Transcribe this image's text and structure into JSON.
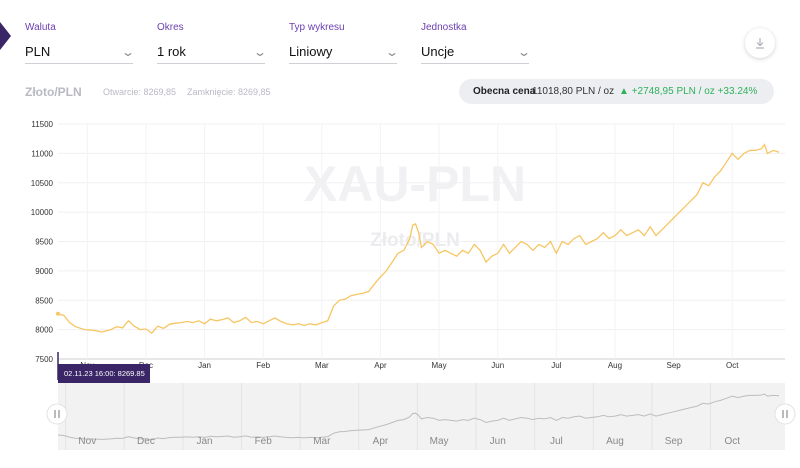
{
  "filters": [
    {
      "label": "Waluta",
      "value": "PLN"
    },
    {
      "label": "Okres",
      "value": "1 rok"
    },
    {
      "label": "Typ wykresu",
      "value": "Liniowy"
    },
    {
      "label": "Jednostka",
      "value": "Uncje"
    }
  ],
  "header": {
    "pair": "Złoto/PLN",
    "open": "Otwarcie: 8269,85",
    "close": "Zamknięcie: 8269,85"
  },
  "current_price": {
    "label": "Obecna cena",
    "value": "11018,80 PLN / oz",
    "change": "+2748,95 PLN / oz +33.24%"
  },
  "watermark": {
    "big": "XAU-PLN",
    "small": "Złoto/PLN"
  },
  "tooltip": "02.11.23 16:00: 8269.85",
  "colors": {
    "line": "#f7c663",
    "accent": "#6b3fb0",
    "tooltip_bg": "#3a2566",
    "up": "#2fb15a"
  },
  "icons": {
    "download": "download-icon",
    "handle": "grip-handle-icon",
    "expand": "chevron-down-icon"
  },
  "chart_data": {
    "type": "line",
    "x_ticks": [
      "Nov",
      "Dec",
      "Jan",
      "Feb",
      "Mar",
      "Apr",
      "May",
      "Jun",
      "Jul",
      "Aug",
      "Sep",
      "Oct"
    ],
    "y_ticks": [
      "7500",
      "8000",
      "8500",
      "9000",
      "9500",
      "10000",
      "10500",
      "11000",
      "11500"
    ],
    "ylim": [
      7500,
      11500
    ],
    "x_domain": [
      0,
      12.4
    ],
    "grid": true,
    "series": [
      {
        "values": [
          [
            0.0,
            8270
          ],
          [
            0.1,
            8240
          ],
          [
            0.2,
            8120
          ],
          [
            0.3,
            8050
          ],
          [
            0.45,
            8000
          ],
          [
            0.6,
            7990
          ],
          [
            0.75,
            7960
          ],
          [
            0.9,
            8000
          ],
          [
            1.0,
            8050
          ],
          [
            1.1,
            8030
          ],
          [
            1.2,
            8150
          ],
          [
            1.3,
            8060
          ],
          [
            1.4,
            8000
          ],
          [
            1.5,
            8010
          ],
          [
            1.6,
            7940
          ],
          [
            1.7,
            8060
          ],
          [
            1.8,
            8020
          ],
          [
            1.9,
            8090
          ],
          [
            2.0,
            8110
          ],
          [
            2.1,
            8120
          ],
          [
            2.2,
            8140
          ],
          [
            2.3,
            8120
          ],
          [
            2.4,
            8150
          ],
          [
            2.5,
            8100
          ],
          [
            2.6,
            8180
          ],
          [
            2.7,
            8150
          ],
          [
            2.8,
            8170
          ],
          [
            2.9,
            8200
          ],
          [
            3.0,
            8120
          ],
          [
            3.1,
            8150
          ],
          [
            3.2,
            8210
          ],
          [
            3.3,
            8120
          ],
          [
            3.4,
            8140
          ],
          [
            3.5,
            8100
          ],
          [
            3.6,
            8150
          ],
          [
            3.7,
            8200
          ],
          [
            3.8,
            8140
          ],
          [
            3.9,
            8100
          ],
          [
            4.0,
            8080
          ],
          [
            4.1,
            8100
          ],
          [
            4.2,
            8070
          ],
          [
            4.3,
            8100
          ],
          [
            4.4,
            8080
          ],
          [
            4.5,
            8120
          ],
          [
            4.6,
            8150
          ],
          [
            4.7,
            8400
          ],
          [
            4.8,
            8500
          ],
          [
            4.9,
            8520
          ],
          [
            5.0,
            8580
          ],
          [
            5.1,
            8600
          ],
          [
            5.2,
            8620
          ],
          [
            5.3,
            8650
          ],
          [
            5.4,
            8780
          ],
          [
            5.5,
            8900
          ],
          [
            5.6,
            9000
          ],
          [
            5.7,
            9150
          ],
          [
            5.8,
            9300
          ],
          [
            5.9,
            9350
          ],
          [
            6.0,
            9550
          ],
          [
            6.05,
            9780
          ],
          [
            6.1,
            9800
          ],
          [
            6.15,
            9650
          ],
          [
            6.2,
            9400
          ],
          [
            6.3,
            9500
          ],
          [
            6.4,
            9450
          ],
          [
            6.5,
            9300
          ],
          [
            6.6,
            9350
          ],
          [
            6.7,
            9300
          ],
          [
            6.8,
            9250
          ],
          [
            6.9,
            9350
          ],
          [
            7.0,
            9300
          ],
          [
            7.1,
            9450
          ],
          [
            7.2,
            9350
          ],
          [
            7.3,
            9150
          ],
          [
            7.4,
            9250
          ],
          [
            7.5,
            9300
          ],
          [
            7.6,
            9450
          ],
          [
            7.7,
            9300
          ],
          [
            7.8,
            9400
          ],
          [
            7.9,
            9500
          ],
          [
            8.0,
            9450
          ],
          [
            8.1,
            9350
          ],
          [
            8.2,
            9450
          ],
          [
            8.3,
            9400
          ],
          [
            8.4,
            9500
          ],
          [
            8.5,
            9300
          ],
          [
            8.6,
            9500
          ],
          [
            8.7,
            9450
          ],
          [
            8.8,
            9550
          ],
          [
            8.9,
            9600
          ],
          [
            9.0,
            9450
          ],
          [
            9.1,
            9500
          ],
          [
            9.2,
            9550
          ],
          [
            9.3,
            9650
          ],
          [
            9.4,
            9550
          ],
          [
            9.5,
            9600
          ],
          [
            9.6,
            9700
          ],
          [
            9.7,
            9600
          ],
          [
            9.8,
            9650
          ],
          [
            9.9,
            9700
          ],
          [
            10.0,
            9600
          ],
          [
            10.1,
            9750
          ],
          [
            10.2,
            9600
          ],
          [
            10.3,
            9700
          ],
          [
            10.4,
            9800
          ],
          [
            10.5,
            9900
          ],
          [
            10.6,
            10000
          ],
          [
            10.7,
            10100
          ],
          [
            10.8,
            10200
          ],
          [
            10.9,
            10300
          ],
          [
            11.0,
            10500
          ],
          [
            11.1,
            10450
          ],
          [
            11.2,
            10600
          ],
          [
            11.3,
            10700
          ],
          [
            11.4,
            10850
          ],
          [
            11.5,
            11000
          ],
          [
            11.6,
            10900
          ],
          [
            11.7,
            11000
          ],
          [
            11.8,
            11050
          ],
          [
            11.9,
            11050
          ],
          [
            12.0,
            11080
          ],
          [
            12.05,
            11150
          ],
          [
            12.1,
            11000
          ],
          [
            12.2,
            11050
          ],
          [
            12.3,
            11020
          ]
        ]
      }
    ]
  }
}
